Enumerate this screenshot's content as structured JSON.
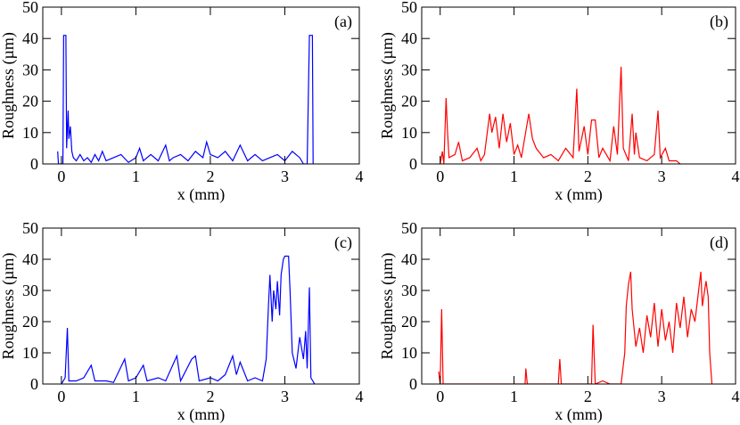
{
  "chart_data": [
    {
      "type": "line",
      "annotation": "(a)",
      "xlabel": "x (mm)",
      "ylabel": "Roughness (µm)",
      "color": "#0000ff",
      "xlim": [
        -0.25,
        4
      ],
      "ylim": [
        0,
        50
      ],
      "xticks": [
        0,
        1,
        2,
        3,
        4
      ],
      "yticks": [
        0,
        10,
        20,
        30,
        40,
        50
      ],
      "x": [
        -0.05,
        -0.04,
        0.0,
        0.02,
        0.03,
        0.06,
        0.07,
        0.09,
        0.1,
        0.12,
        0.14,
        0.16,
        0.2,
        0.25,
        0.3,
        0.35,
        0.4,
        0.45,
        0.5,
        0.55,
        0.6,
        0.7,
        0.8,
        0.9,
        1.0,
        1.05,
        1.1,
        1.2,
        1.3,
        1.4,
        1.45,
        1.5,
        1.6,
        1.7,
        1.8,
        1.9,
        1.95,
        2.0,
        2.1,
        2.2,
        2.3,
        2.4,
        2.5,
        2.6,
        2.7,
        2.8,
        2.9,
        3.0,
        3.1,
        3.2,
        3.25,
        3.3,
        3.33,
        3.37,
        3.38
      ],
      "values": [
        4,
        0,
        0,
        0,
        41,
        41,
        5,
        17,
        8,
        12,
        4,
        2,
        1,
        3,
        1,
        2,
        0.5,
        3,
        1,
        4,
        1,
        2,
        3,
        0.5,
        2,
        5,
        1,
        3,
        1,
        6,
        1,
        2,
        3,
        1,
        4,
        2,
        7,
        3,
        2,
        4,
        1,
        6,
        1,
        3,
        1,
        2,
        3,
        1,
        4,
        2,
        0,
        0,
        41,
        41,
        0
      ]
    },
    {
      "type": "line",
      "annotation": "(b)",
      "xlabel": "x (mm)",
      "ylabel": "Roughness (µm)",
      "color": "#ff0000",
      "xlim": [
        -0.25,
        4
      ],
      "ylim": [
        0,
        50
      ],
      "xticks": [
        0,
        1,
        2,
        3,
        4
      ],
      "yticks": [
        0,
        10,
        20,
        30,
        40,
        50
      ],
      "x": [
        0.0,
        0.03,
        0.05,
        0.08,
        0.1,
        0.12,
        0.2,
        0.25,
        0.3,
        0.4,
        0.5,
        0.55,
        0.6,
        0.67,
        0.7,
        0.75,
        0.8,
        0.85,
        0.9,
        0.95,
        1.0,
        1.05,
        1.1,
        1.2,
        1.25,
        1.3,
        1.4,
        1.5,
        1.6,
        1.7,
        1.8,
        1.85,
        1.88,
        1.95,
        2.0,
        2.05,
        2.1,
        2.15,
        2.2,
        2.3,
        2.35,
        2.4,
        2.45,
        2.48,
        2.55,
        2.6,
        2.63,
        2.65,
        2.7,
        2.8,
        2.9,
        2.95,
        2.98,
        3.05,
        3.1,
        3.2,
        3.25
      ],
      "values": [
        0,
        4,
        0,
        21,
        10,
        2,
        3,
        7,
        1,
        2,
        5,
        1,
        3,
        16,
        10,
        15,
        5,
        16,
        7,
        13,
        3,
        6,
        2,
        16,
        8,
        5,
        2,
        3,
        1,
        5,
        2,
        24,
        4,
        12,
        3,
        14,
        14,
        2,
        5,
        1,
        12,
        3,
        31,
        5,
        1,
        16,
        3,
        10,
        2,
        1,
        3,
        17,
        2,
        5,
        1,
        1,
        0
      ]
    },
    {
      "type": "line",
      "annotation": "(c)",
      "xlabel": "x (mm)",
      "ylabel": "Roughness (µm)",
      "color": "#0000ff",
      "xlim": [
        -0.25,
        4
      ],
      "ylim": [
        0,
        50
      ],
      "xticks": [
        0,
        1,
        2,
        3,
        4
      ],
      "yticks": [
        0,
        10,
        20,
        30,
        40,
        50
      ],
      "x": [
        0.0,
        0.05,
        0.08,
        0.1,
        0.2,
        0.3,
        0.4,
        0.45,
        0.6,
        0.7,
        0.85,
        0.9,
        1.0,
        1.1,
        1.15,
        1.3,
        1.4,
        1.55,
        1.6,
        1.75,
        1.8,
        1.85,
        2.0,
        2.1,
        2.2,
        2.3,
        2.35,
        2.4,
        2.5,
        2.6,
        2.7,
        2.75,
        2.78,
        2.8,
        2.83,
        2.85,
        2.88,
        2.9,
        2.93,
        2.95,
        2.98,
        3.0,
        3.05,
        3.07,
        3.1,
        3.15,
        3.2,
        3.25,
        3.28,
        3.3,
        3.33,
        3.35,
        3.4
      ],
      "values": [
        0,
        2,
        18,
        1,
        1,
        2,
        6,
        1,
        1,
        0.5,
        8,
        1,
        2,
        6,
        1,
        2,
        1,
        9,
        1,
        8,
        9,
        1,
        2,
        1,
        3,
        9,
        3,
        7,
        1,
        2,
        1,
        8,
        25,
        35,
        20,
        30,
        24,
        33,
        22,
        35,
        40,
        41,
        41,
        30,
        10,
        5,
        15,
        8,
        17,
        5,
        31,
        2,
        0
      ]
    },
    {
      "type": "line",
      "annotation": "(d)",
      "xlabel": "x (mm)",
      "ylabel": "Roughness (µm)",
      "color": "#ff0000",
      "xlim": [
        -0.25,
        4
      ],
      "ylim": [
        0,
        50
      ],
      "xticks": [
        0,
        1,
        2,
        3,
        4
      ],
      "yticks": [
        0,
        10,
        20,
        30,
        40,
        50
      ],
      "x": [
        -0.02,
        0.0,
        0.02,
        0.04,
        0.1,
        0.5,
        1.15,
        1.16,
        1.18,
        1.6,
        1.62,
        1.64,
        2.05,
        2.07,
        2.1,
        2.2,
        2.3,
        2.45,
        2.5,
        2.52,
        2.55,
        2.58,
        2.6,
        2.65,
        2.7,
        2.75,
        2.8,
        2.85,
        2.9,
        2.95,
        3.0,
        3.05,
        3.1,
        3.15,
        3.2,
        3.25,
        3.3,
        3.35,
        3.4,
        3.45,
        3.5,
        3.53,
        3.55,
        3.6,
        3.63,
        3.65,
        3.68
      ],
      "values": [
        4,
        0,
        24,
        0,
        0,
        0,
        0,
        5,
        0,
        0,
        8,
        0,
        0,
        19,
        0,
        1,
        0,
        0,
        10,
        25,
        32,
        36,
        24,
        12,
        18,
        10,
        22,
        15,
        26,
        12,
        24,
        14,
        20,
        10,
        26,
        18,
        28,
        15,
        24,
        20,
        30,
        36,
        25,
        33,
        28,
        10,
        0
      ]
    }
  ]
}
